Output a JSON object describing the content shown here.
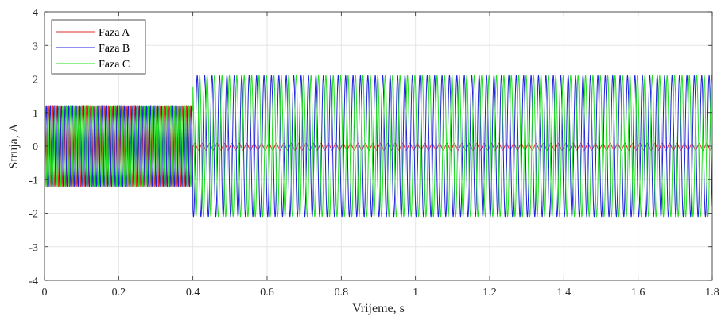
{
  "chart_data": {
    "type": "line",
    "title": "",
    "xlabel": "Vrijeme, s",
    "ylabel": "Struja, A",
    "xlim": [
      0,
      1.8
    ],
    "ylim": [
      -4,
      4
    ],
    "xticks": [
      0,
      0.2,
      0.4,
      0.6,
      0.8,
      1,
      1.2,
      1.4,
      1.6,
      1.8
    ],
    "xtick_labels": [
      "0",
      "0.2",
      "0.4",
      "0.6",
      "0.8",
      "1",
      "1.2",
      "1.4",
      "1.6",
      "1.8"
    ],
    "yticks": [
      -4,
      -3,
      -2,
      -1,
      0,
      1,
      2,
      3,
      4
    ],
    "ytick_labels": [
      "-4",
      "-3",
      "-2",
      "-1",
      "0",
      "1",
      "2",
      "3",
      "4"
    ],
    "grid": true,
    "legend_position": "top-left",
    "series": [
      {
        "name": "Faza A",
        "color": "#e03030",
        "phase_deg": 0,
        "segments": [
          {
            "t_start": 0,
            "t_end": 0.4,
            "amplitude": 1.2,
            "frequency_hz": 100,
            "offset": 0
          },
          {
            "t_start": 0.4,
            "t_end": 1.8,
            "amplitude": 0.1,
            "frequency_hz": 50,
            "offset": -0.02
          }
        ]
      },
      {
        "name": "Faza B",
        "color": "#2020e0",
        "phase_deg": -120,
        "segments": [
          {
            "t_start": 0,
            "t_end": 0.4,
            "amplitude": 1.2,
            "frequency_hz": 100,
            "offset": 0
          },
          {
            "t_start": 0.4,
            "t_end": 1.8,
            "amplitude": 2.1,
            "frequency_hz": 50,
            "offset": 0
          }
        ]
      },
      {
        "name": "Faza C",
        "color": "#20e020",
        "phase_deg": 120,
        "segments": [
          {
            "t_start": 0,
            "t_end": 0.4,
            "amplitude": 1.2,
            "frequency_hz": 100,
            "offset": 0
          },
          {
            "t_start": 0.4,
            "t_end": 1.8,
            "amplitude": 2.1,
            "frequency_hz": 50,
            "offset": 0
          }
        ]
      }
    ]
  }
}
